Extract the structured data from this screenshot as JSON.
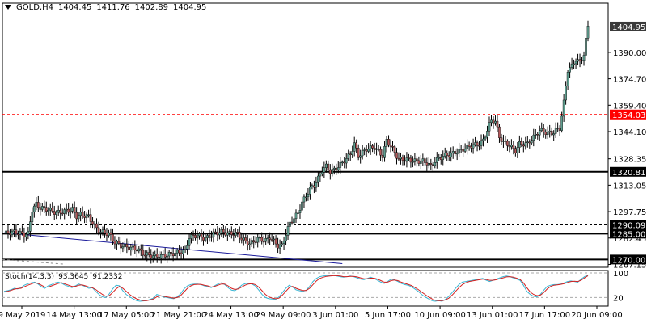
{
  "header": {
    "symbol": "GOLD,H4",
    "open": "1404.45",
    "high": "1411.76",
    "low": "1402.89",
    "close": "1404.95"
  },
  "colors": {
    "bull": "#5f9e8f",
    "bear": "#b5585a",
    "level_line": "#000000",
    "resistance_dashed": "#ff0000",
    "trendline": "#1a1a9a",
    "stoch_main": "#3ab6d4",
    "stoch_signal": "#d42020"
  },
  "chart_data": {
    "type": "candlestick",
    "ylim": [
      1265.5,
      1418.5
    ],
    "y_ticks": [
      "1390.00",
      "1374.70",
      "1359.40",
      "1344.10",
      "1328.35",
      "1313.05",
      "1297.75",
      "1282.45",
      "1267.15"
    ],
    "x_labels": [
      "9 May 2019",
      "14 May 13:00",
      "17 May 05:00",
      "21 May 21:00",
      "24 May 13:00",
      "29 May 09:00",
      "3 Jun 01:00",
      "5 Jun 17:00",
      "10 Jun 09:00",
      "13 Jun 01:00",
      "17 Jun 17:00",
      "20 Jun 09:00"
    ],
    "price_labels": [
      {
        "value": 1404.95,
        "text": "1404.95",
        "style": "current"
      },
      {
        "value": 1354.03,
        "text": "1354.03",
        "style": "red"
      },
      {
        "value": 1320.81,
        "text": "1320.81",
        "style": "black"
      },
      {
        "value": 1290.09,
        "text": "1290.09",
        "style": "black"
      },
      {
        "value": 1285.0,
        "text": "1285.00",
        "style": "black"
      },
      {
        "value": 1270.0,
        "text": "1270.00",
        "style": "black"
      }
    ],
    "levels": [
      {
        "value": 1354.03,
        "style": "red-dashed"
      },
      {
        "value": 1320.81,
        "style": "solid"
      },
      {
        "value": 1290.09,
        "style": "dashed"
      },
      {
        "value": 1285.0,
        "style": "solid"
      },
      {
        "value": 1270.0,
        "style": "solid"
      }
    ],
    "trendline": {
      "start": [
        0,
        1285.5
      ],
      "end": [
        168,
        1267.6
      ]
    },
    "price_path": [
      [
        0,
        1285
      ],
      [
        5,
        1286
      ],
      [
        10,
        1284.5
      ],
      [
        12,
        1285
      ],
      [
        14,
        1299
      ],
      [
        16,
        1302
      ],
      [
        18,
        1300
      ],
      [
        22,
        1299
      ],
      [
        26,
        1297
      ],
      [
        30,
        1298
      ],
      [
        34,
        1299
      ],
      [
        36,
        1295
      ],
      [
        38,
        1296
      ],
      [
        42,
        1295
      ],
      [
        44,
        1291
      ],
      [
        46,
        1288
      ],
      [
        48,
        1286
      ],
      [
        52,
        1285
      ],
      [
        55,
        1280
      ],
      [
        58,
        1278
      ],
      [
        62,
        1277
      ],
      [
        66,
        1276
      ],
      [
        70,
        1273
      ],
      [
        74,
        1272
      ],
      [
        78,
        1272
      ],
      [
        82,
        1273
      ],
      [
        86,
        1274
      ],
      [
        90,
        1275
      ],
      [
        92,
        1283
      ],
      [
        96,
        1284
      ],
      [
        100,
        1282
      ],
      [
        104,
        1285
      ],
      [
        108,
        1286
      ],
      [
        112,
        1285
      ],
      [
        116,
        1285
      ],
      [
        118,
        1282
      ],
      [
        122,
        1279
      ],
      [
        126,
        1282
      ],
      [
        130,
        1281
      ],
      [
        132,
        1283
      ],
      [
        136,
        1278
      ],
      [
        138,
        1278
      ],
      [
        140,
        1285
      ],
      [
        142,
        1291
      ],
      [
        144,
        1294
      ],
      [
        146,
        1297
      ],
      [
        148,
        1303
      ],
      [
        150,
        1307
      ],
      [
        152,
        1311
      ],
      [
        154,
        1313
      ],
      [
        156,
        1317
      ],
      [
        158,
        1322
      ],
      [
        160,
        1324
      ],
      [
        162,
        1321
      ],
      [
        164,
        1322
      ],
      [
        166,
        1324
      ],
      [
        168,
        1326
      ],
      [
        172,
        1331
      ],
      [
        174,
        1337
      ],
      [
        176,
        1330
      ],
      [
        180,
        1334
      ],
      [
        184,
        1335
      ],
      [
        188,
        1330
      ],
      [
        190,
        1339
      ],
      [
        192,
        1336
      ],
      [
        194,
        1332
      ],
      [
        196,
        1328
      ],
      [
        200,
        1328
      ],
      [
        204,
        1327
      ],
      [
        208,
        1327
      ],
      [
        210,
        1326
      ],
      [
        212,
        1324
      ],
      [
        214,
        1327
      ],
      [
        218,
        1330
      ],
      [
        222,
        1331
      ],
      [
        226,
        1333
      ],
      [
        228,
        1334
      ],
      [
        232,
        1336
      ],
      [
        236,
        1337
      ],
      [
        238,
        1339
      ],
      [
        240,
        1345
      ],
      [
        242,
        1351
      ],
      [
        244,
        1350
      ],
      [
        246,
        1341
      ],
      [
        248,
        1338
      ],
      [
        250,
        1337
      ],
      [
        252,
        1335
      ],
      [
        254,
        1333
      ],
      [
        256,
        1337
      ],
      [
        260,
        1337
      ],
      [
        262,
        1340
      ],
      [
        264,
        1342
      ],
      [
        266,
        1345
      ],
      [
        268,
        1344
      ],
      [
        272,
        1343
      ],
      [
        274,
        1345
      ],
      [
        276,
        1346
      ],
      [
        278,
        1361
      ],
      [
        280,
        1380
      ],
      [
        282,
        1382
      ],
      [
        284,
        1386
      ],
      [
        286,
        1384
      ],
      [
        288,
        1389
      ],
      [
        290,
        1404.95
      ]
    ],
    "stoch_label": {
      "name": "Stoch(14,3,3)",
      "main": "93.3645",
      "signal": "91.2332"
    },
    "stoch_ticks": [
      "100",
      "20"
    ],
    "stoch_main": [
      40,
      42,
      45,
      50,
      48,
      52,
      60,
      65,
      68,
      70,
      64,
      55,
      50,
      58,
      62,
      68,
      70,
      66,
      60,
      56,
      52,
      58,
      64,
      60,
      55,
      50,
      52,
      40,
      30,
      22,
      20,
      32,
      48,
      60,
      58,
      42,
      30,
      22,
      16,
      10,
      8,
      9,
      10,
      14,
      18,
      30,
      26,
      22,
      20,
      18,
      16,
      22,
      32,
      48,
      58,
      62,
      64,
      64,
      62,
      58,
      56,
      52,
      58,
      64,
      68,
      62,
      52,
      44,
      42,
      50,
      60,
      65,
      66,
      64,
      58,
      45,
      30,
      20,
      16,
      15,
      14,
      22,
      36,
      50,
      60,
      54,
      45,
      42,
      40,
      44,
      56,
      72,
      82,
      88,
      90,
      91,
      92,
      92,
      90,
      88,
      86,
      88,
      90,
      88,
      84,
      80,
      78,
      82,
      86,
      82,
      76,
      70,
      66,
      72,
      80,
      78,
      72,
      66,
      62,
      60,
      55,
      48,
      40,
      30,
      22,
      16,
      10,
      8,
      10,
      8,
      14,
      24,
      36,
      50,
      62,
      70,
      72,
      74,
      76,
      78,
      80,
      82,
      76,
      72,
      76,
      80,
      84,
      88,
      90,
      88,
      84,
      80,
      76,
      60,
      40,
      30,
      24,
      22,
      30,
      44,
      56,
      60,
      62,
      62,
      64,
      68,
      72,
      74,
      72,
      70,
      80,
      88,
      93
    ],
    "stoch_signal": [
      38,
      40,
      43,
      47,
      49,
      50,
      55,
      60,
      64,
      68,
      66,
      60,
      54,
      54,
      58,
      62,
      66,
      68,
      64,
      60,
      56,
      56,
      60,
      61,
      58,
      54,
      52,
      46,
      38,
      30,
      24,
      26,
      36,
      48,
      56,
      50,
      40,
      30,
      22,
      16,
      12,
      10,
      10,
      12,
      15,
      22,
      26,
      24,
      22,
      20,
      18,
      20,
      26,
      38,
      50,
      58,
      62,
      63,
      63,
      60,
      58,
      54,
      56,
      60,
      64,
      64,
      58,
      50,
      46,
      48,
      54,
      60,
      64,
      65,
      62,
      54,
      42,
      30,
      22,
      18,
      16,
      18,
      28,
      40,
      52,
      56,
      50,
      46,
      43,
      43,
      50,
      62,
      74,
      82,
      86,
      89,
      90,
      91,
      91,
      90,
      88,
      88,
      89,
      89,
      87,
      84,
      81,
      81,
      83,
      83,
      80,
      75,
      70,
      70,
      75,
      77,
      75,
      70,
      66,
      63,
      59,
      53,
      46,
      38,
      30,
      22,
      16,
      11,
      10,
      10,
      12,
      18,
      28,
      40,
      52,
      62,
      68,
      72,
      74,
      76,
      78,
      80,
      79,
      76,
      76,
      78,
      81,
      84,
      87,
      88,
      86,
      83,
      79,
      68,
      52,
      38,
      30,
      26,
      28,
      36,
      48,
      56,
      60,
      61,
      63,
      65,
      69,
      72,
      73,
      72,
      76,
      84,
      91
    ]
  }
}
